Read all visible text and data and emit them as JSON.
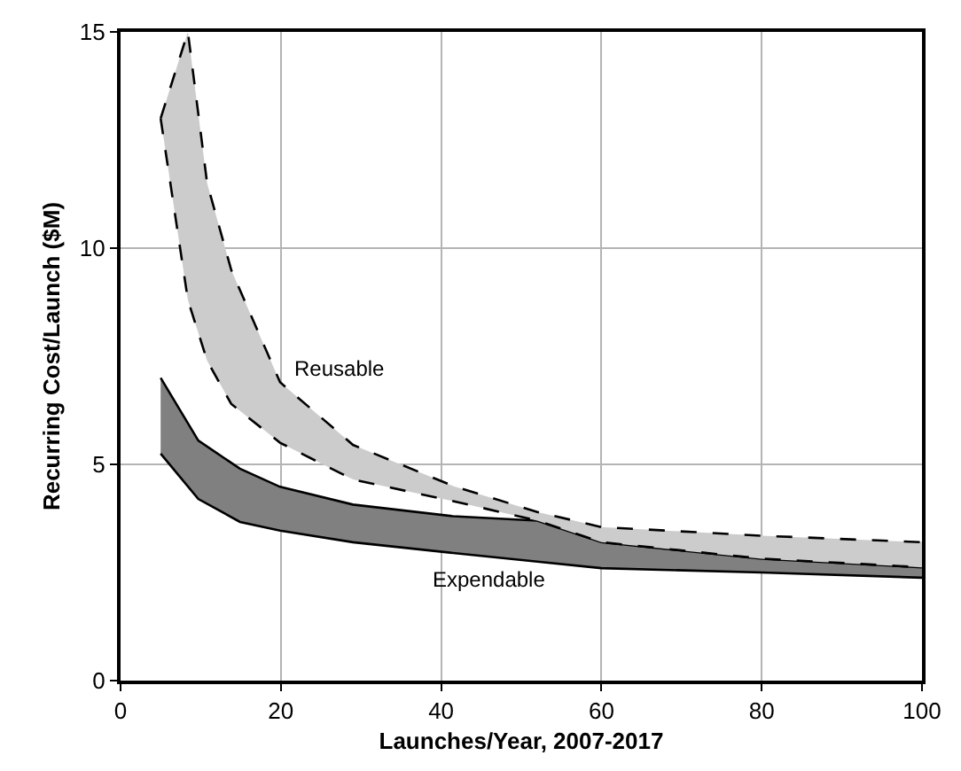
{
  "chart_data": {
    "type": "area",
    "xlabel": "Launches/Year, 2007-2017",
    "ylabel": "Recurring Cost/Launch ($M)",
    "xlim": [
      0,
      100
    ],
    "xticks": [
      0,
      20,
      40,
      60,
      80,
      100
    ],
    "ylim": [
      0,
      15
    ],
    "yticks": [
      0,
      5,
      10,
      15
    ],
    "grid": true,
    "series": [
      {
        "type": "line",
        "color": "#000000",
        "line_style": "solid",
        "x": [
          5,
          9.7,
          14.9,
          19.9,
          29,
          41.5,
          52,
          60,
          80,
          100
        ],
        "values": [
          5.25,
          4.2,
          3.67,
          3.47,
          3.2,
          2.95,
          2.75,
          2.6,
          2.5,
          2.38
        ]
      },
      {
        "name": "Expendable",
        "color": "#808080",
        "line_style": "solid",
        "x": [
          5,
          9.7,
          14.9,
          19.9,
          29,
          41.5,
          52,
          60,
          80,
          100
        ],
        "values": [
          7.0,
          5.55,
          4.9,
          4.48,
          4.07,
          3.8,
          3.7,
          3.2,
          2.82,
          2.62
        ]
      },
      {
        "type": "line",
        "color": "#000000",
        "line_style": "dashed",
        "x": [
          5,
          8.4,
          10.8,
          13.8,
          19.9,
          29,
          41.5,
          52,
          60,
          80,
          100
        ],
        "values": [
          13,
          8.8,
          7.4,
          6.4,
          5.5,
          4.65,
          4.15,
          3.7,
          3.2,
          2.82,
          2.62
        ]
      },
      {
        "name": "Reusable",
        "color": "#cccccc",
        "line_style": "dashed",
        "x": [
          5,
          8.4,
          10.8,
          13.8,
          19.9,
          29,
          41.5,
          52,
          60,
          80,
          100
        ],
        "values": [
          13,
          15,
          11.5,
          9.5,
          6.9,
          5.45,
          4.5,
          3.9,
          3.55,
          3.35,
          3.2
        ]
      }
    ]
  }
}
